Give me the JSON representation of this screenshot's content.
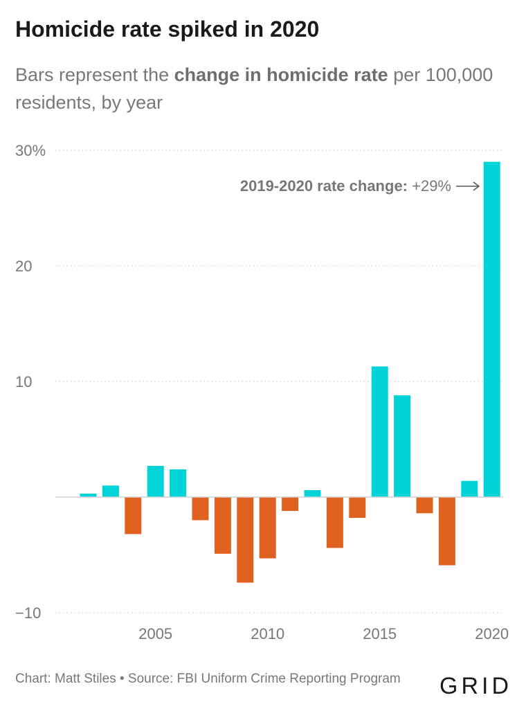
{
  "header": {
    "title": "Homicide rate spiked in 2020",
    "subtitle_pre": "Bars represent the ",
    "subtitle_bold": "change in homicide rate",
    "subtitle_post": " per 100,000 residents, by year"
  },
  "colors": {
    "positive": "#00d4d8",
    "negative": "#e0601f",
    "grid": "#cccccc",
    "text": "#777777"
  },
  "chart_data": {
    "type": "bar",
    "x": [
      2002,
      2003,
      2004,
      2005,
      2006,
      2007,
      2008,
      2009,
      2010,
      2011,
      2012,
      2013,
      2014,
      2015,
      2016,
      2017,
      2018,
      2019,
      2020
    ],
    "values": [
      0.3,
      1.0,
      -3.2,
      2.7,
      2.4,
      -2.0,
      -4.9,
      -7.4,
      -5.3,
      -1.2,
      0.6,
      -4.4,
      -1.8,
      11.3,
      8.8,
      -1.4,
      -5.9,
      1.4,
      29.0
    ],
    "y_ticks": [
      {
        "value": 30,
        "label": "30%"
      },
      {
        "value": 20,
        "label": "20"
      },
      {
        "value": 10,
        "label": "10"
      },
      {
        "value": -10,
        "label": "−10"
      }
    ],
    "x_ticks": [
      {
        "value": 2005,
        "label": "2005"
      },
      {
        "value": 2010,
        "label": "2010"
      },
      {
        "value": 2015,
        "label": "2015"
      },
      {
        "value": 2020,
        "label": "2020"
      }
    ],
    "ylim": [
      -10,
      30
    ],
    "grid": true,
    "annotation": {
      "bold": "2019-2020 rate change:",
      "text": " +29%",
      "arrow": "→"
    }
  },
  "footer": {
    "credit": "Chart: Matt Stiles • Source: FBI Uniform Crime Reporting Program",
    "logo": "GRID"
  }
}
